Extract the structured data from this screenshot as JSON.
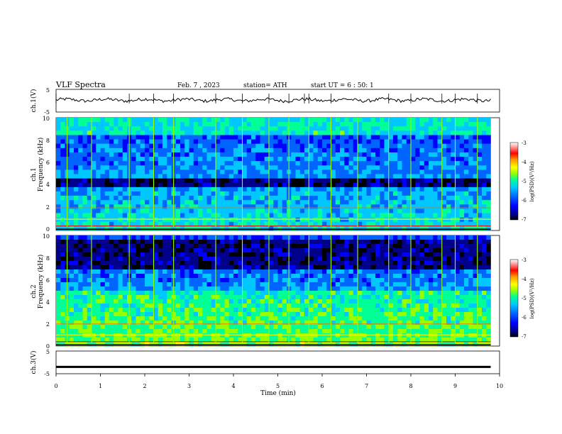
{
  "header": {
    "title": "VLF  Spectra",
    "date": "Feb. 7  , 2023",
    "station": "station= ATH",
    "start": "start  UT  =   6  : 50: 1"
  },
  "colors": {
    "background": "#ffffff",
    "trace": "#000000",
    "cmap": [
      "#000000",
      "#00008b",
      "#0000ff",
      "#0064ff",
      "#00c8ff",
      "#00ff96",
      "#96ff00",
      "#ffff00",
      "#ff9600",
      "#ff0000",
      "#ff9696",
      "#ffffff"
    ]
  },
  "chart_data": [
    {
      "type": "line",
      "panel": "ch1-voltage",
      "ylabel": "ch.1(V)",
      "yticks": [
        "5",
        "-5"
      ],
      "ylim": [
        -5,
        5
      ],
      "xlim": [
        0,
        10
      ],
      "baseline_value": 0.3,
      "spikes_min": [
        0.0,
        1.65,
        2.2,
        2.65,
        3.6,
        4.2,
        4.8,
        5.25,
        5.6,
        5.7,
        6.2,
        7.5,
        8.0,
        8.7,
        9.0,
        9.5
      ]
    },
    {
      "type": "heatmap",
      "panel": "ch1-spectrogram",
      "channel_label": "ch.1",
      "ylabel": "Frequency  (kHz)",
      "yticks": [
        "10",
        "8",
        "6",
        "4",
        "2",
        "0"
      ],
      "ylim": [
        0,
        10
      ],
      "xlim": [
        0,
        9.8
      ],
      "colorbar": {
        "label": "log(PSD)(V²/Hz)",
        "ticks": [
          "-3",
          "-4",
          "-5",
          "-6",
          "-7"
        ],
        "range": [
          -7,
          -3
        ]
      },
      "dark_band_khz": [
        3.8,
        4.6
      ],
      "line_2khz_end_min": 1.15,
      "line_2khz_resume_min": 5.6,
      "spikes_min": [
        0.25,
        0.8,
        1.65,
        2.2,
        2.65,
        3.6,
        4.2,
        4.8,
        5.25,
        5.7,
        6.2,
        6.8,
        7.5,
        8.0,
        8.7,
        9.0,
        9.5
      ]
    },
    {
      "type": "heatmap",
      "panel": "ch2-spectrogram",
      "channel_label": "ch.2",
      "ylabel": "Frequency  (kHz)",
      "yticks": [
        "10",
        "8",
        "6",
        "4",
        "2",
        "0"
      ],
      "ylim": [
        0,
        10
      ],
      "xlim": [
        0,
        9.8
      ],
      "colorbar": {
        "label": "log(PSD)(V²/Hz)",
        "ticks": [
          "-3",
          "-4",
          "-5",
          "-6",
          "-7"
        ],
        "range": [
          -7,
          -3
        ]
      },
      "dark_band_khz": [
        7.0,
        9.5
      ],
      "line_2khz_end_min": 5.6,
      "line_2khz_resume_min": 5.6,
      "spikes_min": [
        0.25,
        0.8,
        1.65,
        2.2,
        2.65,
        3.6,
        4.2,
        4.8,
        5.25,
        5.7,
        6.2,
        6.8,
        7.5,
        8.0,
        8.7,
        9.0,
        9.5
      ]
    },
    {
      "type": "line",
      "panel": "ch3-voltage",
      "ylabel": "ch.3(V)",
      "yticks": [
        "5",
        "-5"
      ],
      "ylim": [
        -5,
        5
      ],
      "xlim": [
        0,
        10
      ],
      "baseline_value": -2,
      "xlabel": "Time  (min)",
      "xticks": [
        "0",
        "1",
        "2",
        "3",
        "4",
        "5",
        "6",
        "7",
        "8",
        "9",
        "10"
      ]
    }
  ]
}
